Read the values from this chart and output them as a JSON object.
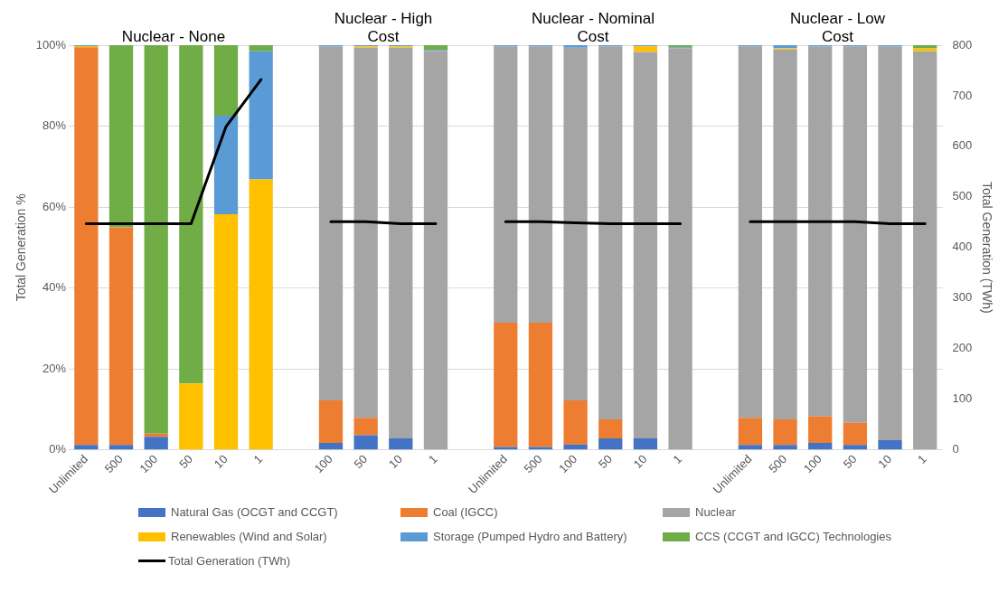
{
  "chart_data": {
    "type": "bar",
    "stacked": true,
    "annotations": [
      "Nuclear - None",
      "Nuclear - High Cost",
      "Nuclear - Nominal Cost",
      "Nuclear - Low Cost"
    ],
    "ylabel": "Total Generation %",
    "y2label": "Total Generation (TWh)",
    "categories": [
      "Unlimited",
      "500",
      "100",
      "50",
      "10",
      "1",
      null,
      "100",
      "50",
      "10",
      "1",
      null,
      "Unlimited",
      "500",
      "100",
      "50",
      "10",
      "1",
      null,
      "Unlimited",
      "500",
      "100",
      "50",
      "10",
      "1"
    ],
    "series": [
      {
        "name": "Natural Gas (OCGT and CCGT)",
        "color": "#4472c4",
        "values": [
          1.2,
          1.2,
          3.2,
          0,
          0,
          0,
          null,
          1.7,
          3.6,
          2.8,
          0,
          null,
          0.7,
          0.7,
          1.3,
          2.8,
          2.8,
          0,
          null,
          1.2,
          1.2,
          1.7,
          1.2,
          2.4,
          0
        ]
      },
      {
        "name": "Coal (IGCC)",
        "color": "#ed7d31",
        "values": [
          98.3,
          53.8,
          0.8,
          0,
          0,
          0,
          null,
          10.5,
          4.3,
          0,
          0,
          null,
          30.7,
          30.7,
          10.9,
          4.7,
          0,
          0,
          null,
          6.7,
          6.3,
          6.6,
          5.5,
          0,
          0
        ]
      },
      {
        "name": "Nuclear",
        "color": "#a5a5a5",
        "values": [
          0,
          0,
          0,
          0,
          0,
          0,
          null,
          87.5,
          91.5,
          96.6,
          98.6,
          null,
          68.3,
          68.3,
          87.2,
          92.2,
          95.5,
          99.3,
          null,
          91.8,
          91.5,
          91.4,
          93.0,
          97.3,
          98.5
        ]
      },
      {
        "name": "Renewables (Wind and Solar)",
        "color": "#ffc000",
        "values": [
          0.3,
          0,
          0,
          16.4,
          58.2,
          66.8,
          null,
          0,
          0.3,
          0.3,
          0,
          null,
          0,
          0,
          0,
          0,
          1.4,
          0,
          null,
          0,
          0.3,
          0,
          0,
          0,
          0.7
        ]
      },
      {
        "name": "Storage (Pumped Hydro and Battery)",
        "color": "#5b9bd5",
        "values": [
          0.2,
          0,
          0,
          0,
          24.4,
          31.7,
          null,
          0.3,
          0.3,
          0.3,
          0.2,
          null,
          0.3,
          0.3,
          0.6,
          0.3,
          0.3,
          0.2,
          null,
          0.3,
          0.7,
          0.3,
          0.3,
          0.3,
          0
        ]
      },
      {
        "name": "CCS (CCGT and IGCC) Technologies",
        "color": "#70ad47",
        "values": [
          0,
          45,
          96,
          83.6,
          17.4,
          1.5,
          null,
          0,
          0,
          0,
          1.2,
          null,
          0,
          0,
          0,
          0,
          0,
          0.5,
          null,
          0,
          0,
          0,
          0,
          0,
          0.8
        ]
      },
      {
        "name": "Total Generation (TWh)",
        "type": "line",
        "axis": "y2",
        "color": "#000000",
        "marker": "none",
        "values": [
          447,
          447,
          447,
          447,
          639,
          732,
          null,
          451,
          451,
          447,
          447,
          null,
          451,
          451,
          449,
          447,
          447,
          447,
          null,
          451,
          451,
          451,
          451,
          447,
          447
        ]
      }
    ],
    "ylim": [
      0,
      100
    ],
    "yticks": [
      {
        "value": 0,
        "label": "0%"
      },
      {
        "value": 20,
        "label": "20%"
      },
      {
        "value": 40,
        "label": "40%"
      },
      {
        "value": 60,
        "label": "60%"
      },
      {
        "value": 80,
        "label": "80%"
      },
      {
        "value": 100,
        "label": "100%"
      }
    ],
    "y2lim": [
      0,
      800
    ],
    "y2ticks": [
      0,
      100,
      200,
      300,
      400,
      500,
      600,
      700,
      800
    ],
    "grid": "y",
    "legend": "bottom"
  }
}
